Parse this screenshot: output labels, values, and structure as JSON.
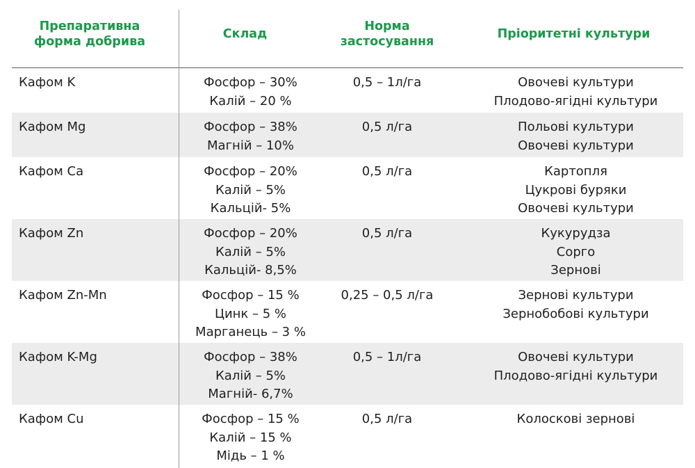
{
  "header": {
    "col1_line1": "Препаративна",
    "col1_line2": "форма добрива",
    "col2": "Склад",
    "col3_line1": "Норма",
    "col3_line2": "застосування",
    "col4": "Пріоритетні культури"
  },
  "rows": [
    {
      "name": "Кафом K",
      "composition": [
        "Фосфор – 30%",
        "Калій – 20 %"
      ],
      "rate": "0,5 – 1л/га",
      "crops": [
        "Овочеві культури",
        "Плодово-ягідні культури"
      ]
    },
    {
      "name": "Кафом Mg",
      "composition": [
        "Фосфор – 38%",
        "Магній – 10%"
      ],
      "rate": "0,5 л/га",
      "crops": [
        "Польові культури",
        "Овочеві культури"
      ]
    },
    {
      "name": "Кафом Ca",
      "composition": [
        "Фосфор – 20%",
        "Калій – 5%",
        "Кальцій- 5%"
      ],
      "rate": "0,5 л/га",
      "crops": [
        "Картопля",
        "Цукрові буряки",
        "Овочеві культури"
      ]
    },
    {
      "name": "Кафом Zn",
      "composition": [
        "Фосфор – 20%",
        "Калій – 5%",
        "Кальцій- 8,5%"
      ],
      "rate": "0,5 л/га",
      "crops": [
        "Кукурудза",
        "Сорго",
        "Зернові"
      ]
    },
    {
      "name": "Кафом Zn-Mn",
      "composition": [
        "Фосфор – 15 %",
        "Цинк – 5 %",
        "Марганець – 3 %"
      ],
      "rate": "0,25 – 0,5 л/га",
      "crops": [
        "Зернові культури",
        "Зернобобові культури"
      ]
    },
    {
      "name": "Кафом K-Mg",
      "composition": [
        "Фосфор – 38%",
        "Калій – 5%",
        "Магній- 6,7%"
      ],
      "rate": "0,5 – 1л/га",
      "crops": [
        "Овочеві культури",
        "Плодово-ягідні культури"
      ]
    },
    {
      "name": "Кафом Cu",
      "composition": [
        "Фосфор – 15 %",
        "Калій – 15 %",
        "Мідь – 1 %"
      ],
      "rate": "0,5 л/га",
      "crops": [
        "Колоскові зернові"
      ]
    }
  ]
}
